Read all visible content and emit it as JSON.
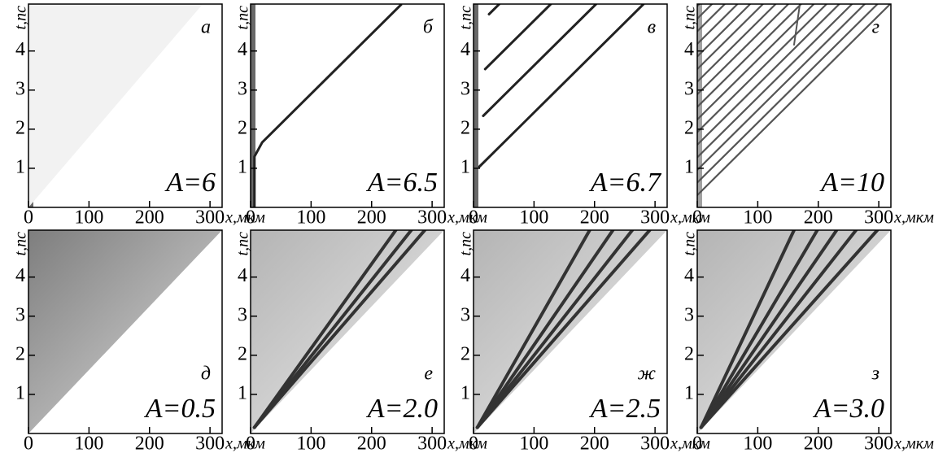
{
  "chart_data": [
    {
      "type": "heatmap",
      "panel": "а",
      "annotation": "A=6",
      "xlabel": "x,мкм",
      "ylabel": "t,пс",
      "xlim": [
        0,
        320
      ],
      "ylim": [
        0,
        5.2
      ],
      "xticks": [
        0,
        100,
        200,
        300
      ],
      "yticks": [
        1,
        2,
        3,
        4
      ]
    },
    {
      "type": "heatmap",
      "panel": "б",
      "annotation": "A=6.5",
      "xlabel": "x,мкм",
      "ylabel": "t,пс",
      "xlim": [
        0,
        320
      ],
      "ylim": [
        0,
        5.2
      ],
      "xticks": [
        0,
        100,
        200,
        300
      ],
      "yticks": [
        1,
        2,
        3,
        4
      ]
    },
    {
      "type": "heatmap",
      "panel": "в",
      "annotation": "A=6.7",
      "xlabel": "x,мкм",
      "ylabel": "t,пс",
      "xlim": [
        0,
        320
      ],
      "ylim": [
        0,
        5.2
      ],
      "xticks": [
        0,
        100,
        200,
        300
      ],
      "yticks": [
        1,
        2,
        3,
        4
      ]
    },
    {
      "type": "heatmap",
      "panel": "г",
      "annotation": "A=10",
      "xlabel": "x,мкм",
      "ylabel": "t,пс",
      "xlim": [
        0,
        320
      ],
      "ylim": [
        0,
        5.2
      ],
      "xticks": [
        0,
        100,
        200,
        300
      ],
      "yticks": [
        1,
        2,
        3,
        4
      ]
    },
    {
      "type": "heatmap",
      "panel": "д",
      "annotation": "A=0.5",
      "xlabel": "x,мкм",
      "ylabel": "t,пс",
      "xlim": [
        0,
        320
      ],
      "ylim": [
        0,
        5.2
      ],
      "xticks": [
        0,
        100,
        200,
        300
      ],
      "yticks": [
        1,
        2,
        3,
        4
      ]
    },
    {
      "type": "heatmap",
      "panel": "е",
      "annotation": "A=2.0",
      "xlabel": "x,мкм",
      "ylabel": "t,пс",
      "xlim": [
        0,
        320
      ],
      "ylim": [
        0,
        5.2
      ],
      "xticks": [
        0,
        100,
        200,
        300
      ],
      "yticks": [
        1,
        2,
        3,
        4
      ]
    },
    {
      "type": "heatmap",
      "panel": "ж",
      "annotation": "A=2.5",
      "xlabel": "x,мкм",
      "ylabel": "t,пс",
      "xlim": [
        0,
        320
      ],
      "ylim": [
        0,
        5.2
      ],
      "xticks": [
        0,
        100,
        200,
        300
      ],
      "yticks": [
        1,
        2,
        3,
        4
      ]
    },
    {
      "type": "heatmap",
      "panel": "з",
      "annotation": "A=3.0",
      "xlabel": "x,мкм",
      "ylabel": "t,пс",
      "xlim": [
        0,
        320
      ],
      "ylim": [
        0,
        5.2
      ],
      "xticks": [
        0,
        100,
        200,
        300
      ],
      "yticks": [
        1,
        2,
        3,
        4
      ]
    }
  ]
}
